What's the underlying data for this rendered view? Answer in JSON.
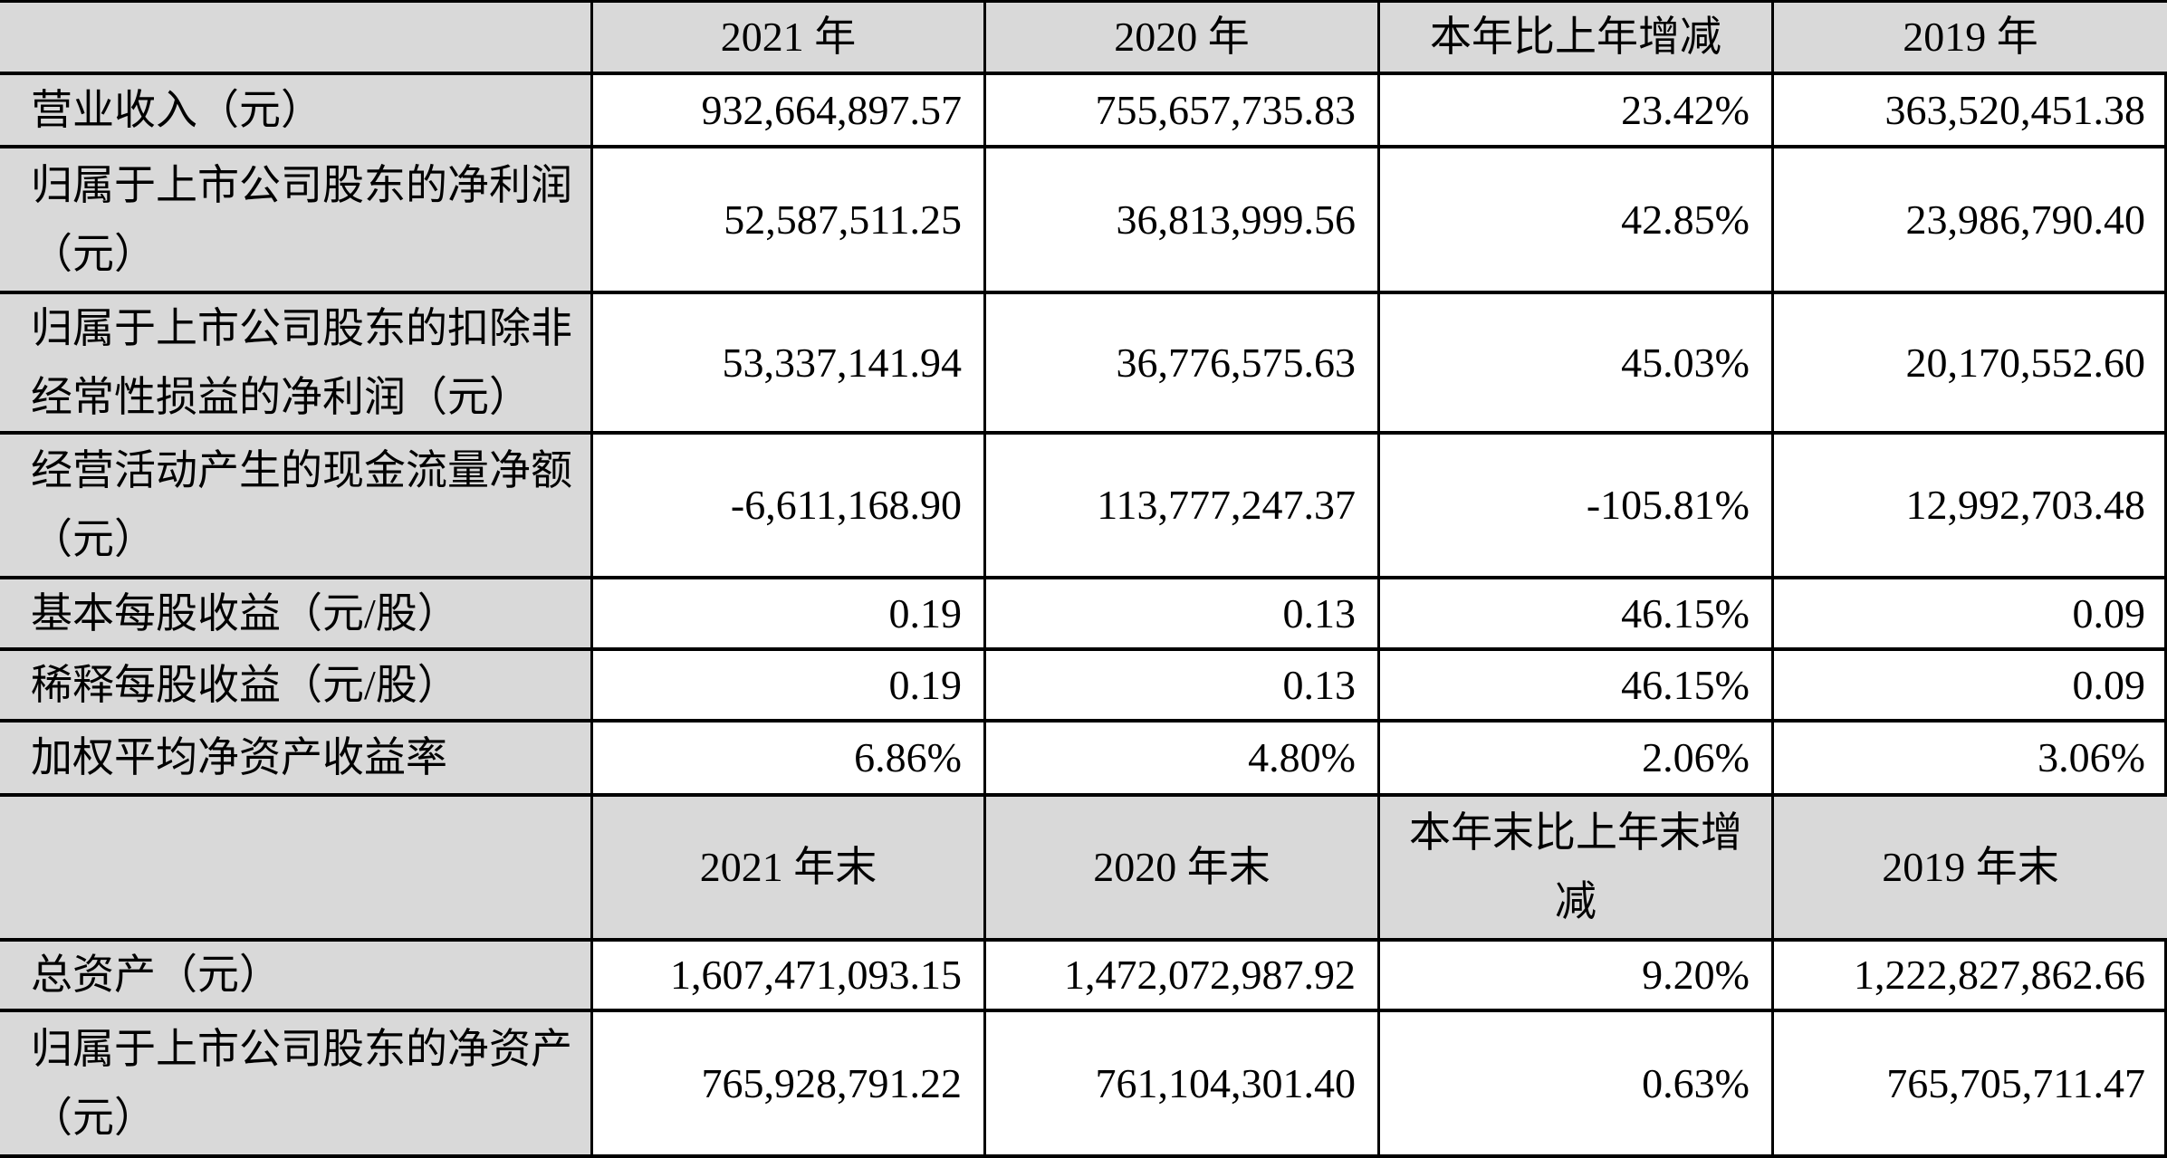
{
  "colors": {
    "shaded_cell_fill": "#d9d9d9",
    "data_cell_fill": "#ffffff",
    "border": "#000000",
    "text": "#000000"
  },
  "table": {
    "header_annual": {
      "blank": "",
      "y2021": "2021 年",
      "y2020": "2020 年",
      "change": "本年比上年增减",
      "y2019": "2019 年"
    },
    "rows_annual": [
      {
        "label": "营业收入（元）",
        "y2021": "932,664,897.57",
        "y2020": "755,657,735.83",
        "change": "23.42%",
        "y2019": "363,520,451.38"
      },
      {
        "label": "归属于上市公司股东的净利润（元）",
        "y2021": "52,587,511.25",
        "y2020": "36,813,999.56",
        "change": "42.85%",
        "y2019": "23,986,790.40"
      },
      {
        "label": "归属于上市公司股东的扣除非经常性损益的净利润（元）",
        "y2021": "53,337,141.94",
        "y2020": "36,776,575.63",
        "change": "45.03%",
        "y2019": "20,170,552.60"
      },
      {
        "label": "经营活动产生的现金流量净额（元）",
        "y2021": "-6,611,168.90",
        "y2020": "113,777,247.37",
        "change": "-105.81%",
        "y2019": "12,992,703.48"
      },
      {
        "label": "基本每股收益（元/股）",
        "y2021": "0.19",
        "y2020": "0.13",
        "change": "46.15%",
        "y2019": "0.09"
      },
      {
        "label": "稀释每股收益（元/股）",
        "y2021": "0.19",
        "y2020": "0.13",
        "change": "46.15%",
        "y2019": "0.09"
      },
      {
        "label": "加权平均净资产收益率",
        "y2021": "6.86%",
        "y2020": "4.80%",
        "change": "2.06%",
        "y2019": "3.06%"
      }
    ],
    "header_eoy": {
      "blank": "",
      "y2021": "2021 年末",
      "y2020": "2020 年末",
      "change": "本年末比上年末增减",
      "y2019": "2019 年末"
    },
    "rows_eoy": [
      {
        "label": "总资产（元）",
        "y2021": "1,607,471,093.15",
        "y2020": "1,472,072,987.92",
        "change": "9.20%",
        "y2019": "1,222,827,862.66"
      },
      {
        "label": "归属于上市公司股东的净资产（元）",
        "y2021": "765,928,791.22",
        "y2020": "761,104,301.40",
        "change": "0.63%",
        "y2019": "765,705,711.47"
      }
    ]
  }
}
